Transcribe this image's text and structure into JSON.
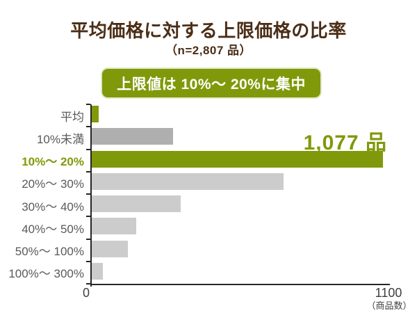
{
  "title": "平均価格に対する上限価格の比率",
  "subtitle": "（n=2,807 品）",
  "callout": {
    "text": "上限値は 10%〜 20%に集中"
  },
  "axis": {
    "x_min_label": "0",
    "x_max_label": "1100",
    "x_unit_label": "（商品数）"
  },
  "colors": {
    "highlight": "#80990A",
    "bar_dark": "#AFAFAF",
    "bar_light": "#CCCCCC",
    "title_text": "#4B2D16",
    "category_text": "#595959",
    "axis_line": "#262626",
    "axis_text": "#3F3F3F",
    "callout_bg": "#80990A",
    "callout_text": "#FFFFFF"
  },
  "chart_data": {
    "type": "bar",
    "orientation": "horizontal",
    "title": "平均価格に対する上限価格の比率",
    "subtitle": "（n=2,807 品）",
    "xlabel": "（商品数）",
    "xlim": [
      0,
      1100
    ],
    "grid": false,
    "legend": false,
    "annotation": {
      "text": "1,077 品",
      "category": "10%〜 20%",
      "value": 1077
    },
    "categories": [
      "平均",
      "10%未満",
      "10%〜 20%",
      "20%〜 30%",
      "30%〜 40%",
      "40%〜 50%",
      "50%〜 100%",
      "100%〜 300%"
    ],
    "bars": [
      {
        "label": "平均",
        "value": 25,
        "color": "highlight",
        "highlight": false
      },
      {
        "label": "10%未満",
        "value": 300,
        "color": "bar_dark",
        "highlight": false
      },
      {
        "label": "10%〜 20%",
        "value": 1077,
        "color": "highlight",
        "highlight": true
      },
      {
        "label": "20%〜 30%",
        "value": 710,
        "color": "bar_light",
        "highlight": false
      },
      {
        "label": "30%〜 40%",
        "value": 330,
        "color": "bar_light",
        "highlight": false
      },
      {
        "label": "40%〜 50%",
        "value": 165,
        "color": "bar_light",
        "highlight": false
      },
      {
        "label": "50%〜 100%",
        "value": 133,
        "color": "bar_light",
        "highlight": false
      },
      {
        "label": "100%〜 300%",
        "value": 40,
        "color": "bar_light",
        "highlight": false
      }
    ]
  }
}
